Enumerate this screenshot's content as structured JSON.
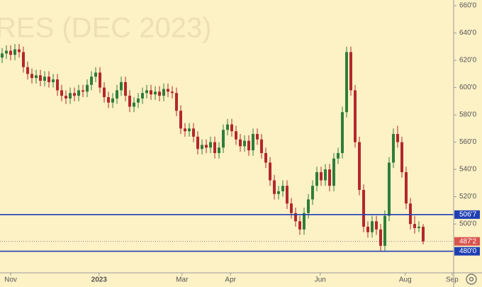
{
  "chart_data": {
    "type": "candlestick",
    "watermark": "RES (DEC 2023)",
    "xlim": [
      -0.5,
      106.17
    ],
    "xticks": [
      {
        "value": 2,
        "label": "Nov"
      },
      {
        "value": 22.8,
        "label": "2023"
      },
      {
        "value": 42.3,
        "label": "Mar"
      },
      {
        "value": 53.7,
        "label": "Apr"
      },
      {
        "value": 74.8,
        "label": "Jun"
      },
      {
        "value": 94.8,
        "label": "Aug"
      },
      {
        "value": 105.8,
        "label": "Sep"
      }
    ],
    "ylim": [
      464.2,
      664.2
    ],
    "yticks": [
      {
        "value": 500,
        "label": "500'0"
      },
      {
        "value": 520,
        "label": "520'0"
      },
      {
        "value": 540,
        "label": "540'0"
      },
      {
        "value": 560,
        "label": "560'0"
      },
      {
        "value": 580,
        "label": "580'0"
      },
      {
        "value": 600,
        "label": "600'0"
      },
      {
        "value": 620,
        "label": "620'0"
      },
      {
        "value": 640,
        "label": "640'0"
      },
      {
        "value": 660,
        "label": "660'0"
      }
    ],
    "up_color": "#2f7d3a",
    "down_color": "#b3272c",
    "open": [
      622,
      625,
      627,
      624,
      628,
      626,
      615,
      610,
      607,
      609,
      605,
      608,
      604,
      606,
      598,
      594,
      592,
      596,
      594,
      598,
      597,
      602,
      608,
      611,
      600,
      593,
      589,
      592,
      598,
      604,
      594,
      586,
      589,
      592,
      596,
      598,
      595,
      597,
      594,
      599,
      597,
      596,
      583,
      570,
      568,
      570,
      564,
      555,
      558,
      556,
      560,
      552,
      556,
      569,
      573,
      568,
      562,
      557,
      561,
      554,
      566,
      562,
      552,
      545,
      532,
      522,
      524,
      528,
      515,
      508,
      502,
      496,
      508,
      518,
      528,
      538,
      532,
      540,
      528,
      548,
      552,
      582,
      626,
      598,
      560,
      525,
      498,
      494,
      502,
      496,
      484,
      506,
      545,
      566,
      560,
      538,
      515,
      500,
      497,
      498
    ],
    "high": [
      629,
      631,
      631,
      632,
      632,
      630,
      619,
      614,
      613,
      613,
      612,
      612,
      610,
      610,
      602,
      598,
      600,
      600,
      602,
      602,
      606,
      612,
      615,
      615,
      604,
      597,
      596,
      602,
      608,
      608,
      598,
      593,
      596,
      600,
      602,
      602,
      601,
      601,
      603,
      603,
      601,
      600,
      587,
      574,
      574,
      574,
      568,
      562,
      562,
      564,
      564,
      560,
      573,
      577,
      577,
      572,
      566,
      565,
      565,
      570,
      570,
      566,
      556,
      549,
      536,
      528,
      532,
      532,
      519,
      512,
      506,
      512,
      522,
      532,
      542,
      542,
      544,
      544,
      552,
      556,
      586,
      630,
      630,
      602,
      564,
      529,
      502,
      506,
      506,
      500,
      510,
      549,
      570,
      572,
      564,
      542,
      519,
      506,
      502,
      500
    ],
    "low": [
      618,
      621,
      620,
      620,
      622,
      611,
      606,
      603,
      603,
      601,
      601,
      600,
      600,
      594,
      590,
      588,
      588,
      590,
      590,
      593,
      593,
      598,
      604,
      596,
      589,
      585,
      585,
      588,
      594,
      590,
      582,
      582,
      585,
      588,
      592,
      591,
      591,
      590,
      590,
      593,
      592,
      579,
      566,
      564,
      564,
      560,
      551,
      551,
      552,
      552,
      548,
      548,
      552,
      565,
      564,
      558,
      553,
      553,
      550,
      550,
      558,
      548,
      541,
      528,
      518,
      518,
      520,
      511,
      504,
      498,
      492,
      492,
      504,
      514,
      524,
      528,
      528,
      524,
      524,
      544,
      548,
      578,
      594,
      556,
      521,
      494,
      490,
      490,
      492,
      480,
      480,
      502,
      541,
      556,
      534,
      511,
      496,
      493,
      494,
      485
    ],
    "close": [
      625,
      627,
      624,
      628,
      626,
      615,
      610,
      607,
      609,
      605,
      608,
      604,
      606,
      598,
      594,
      592,
      596,
      594,
      598,
      597,
      602,
      608,
      611,
      600,
      593,
      589,
      592,
      598,
      604,
      594,
      586,
      589,
      592,
      596,
      598,
      595,
      597,
      594,
      599,
      597,
      596,
      583,
      570,
      568,
      570,
      564,
      555,
      558,
      556,
      560,
      552,
      556,
      569,
      573,
      568,
      562,
      557,
      561,
      554,
      566,
      562,
      552,
      545,
      532,
      522,
      524,
      528,
      515,
      508,
      502,
      496,
      508,
      518,
      528,
      538,
      532,
      540,
      528,
      548,
      552,
      582,
      626,
      598,
      560,
      525,
      498,
      494,
      502,
      496,
      484,
      506,
      545,
      566,
      560,
      538,
      515,
      500,
      497,
      498,
      487.25
    ],
    "levels": [
      {
        "value": 506.875,
        "label": "506'7",
        "color": "#1f3fb4"
      },
      {
        "value": 480,
        "label": "480'0",
        "color": "#1f3fb4"
      }
    ],
    "last": {
      "value": 487.25,
      "label": "487'2",
      "color": "#d9534f"
    }
  }
}
